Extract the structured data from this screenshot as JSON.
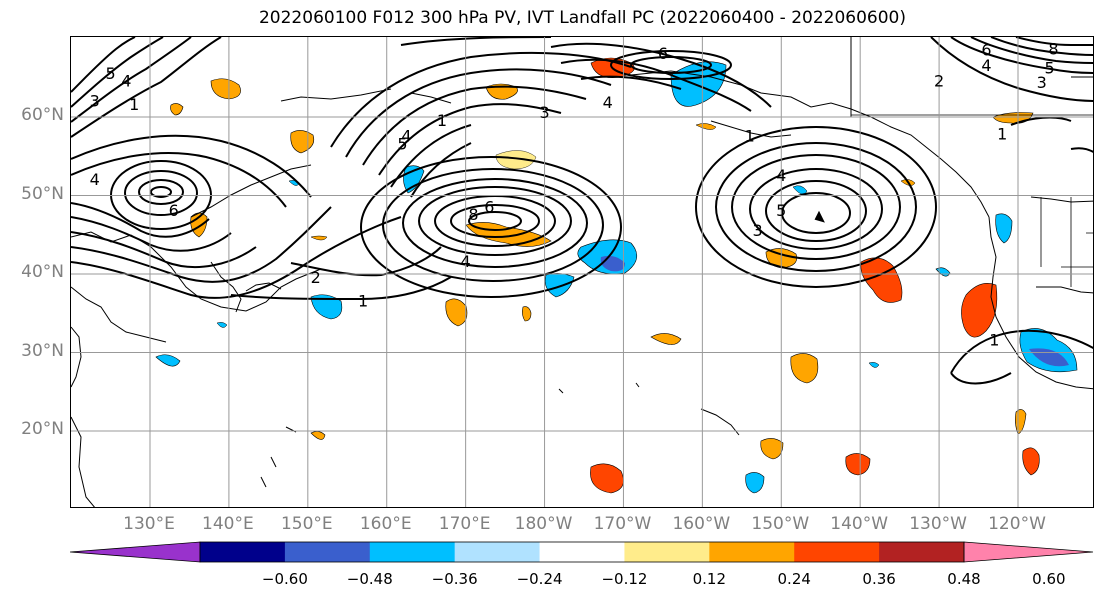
{
  "title": "2022060100 F012 300 hPa PV, IVT Landfall PC (2022060400 - 2022060600)",
  "lat_labels": [
    {
      "text": "60°N",
      "lat": 60
    },
    {
      "text": "50°N",
      "lat": 50
    },
    {
      "text": "40°N",
      "lat": 40
    },
    {
      "text": "30°N",
      "lat": 30
    },
    {
      "text": "20°N",
      "lat": 20
    }
  ],
  "lon_labels": [
    {
      "text": "130°E",
      "lon": 130
    },
    {
      "text": "140°E",
      "lon": 140
    },
    {
      "text": "150°E",
      "lon": 150
    },
    {
      "text": "160°E",
      "lon": 160
    },
    {
      "text": "170°E",
      "lon": 170
    },
    {
      "text": "180°W",
      "lon": 180
    },
    {
      "text": "170°W",
      "lon": 190
    },
    {
      "text": "160°W",
      "lon": 200
    },
    {
      "text": "150°W",
      "lon": 210
    },
    {
      "text": "140°W",
      "lon": 220
    },
    {
      "text": "130°W",
      "lon": 230
    },
    {
      "text": "120°W",
      "lon": 240
    }
  ],
  "map_extent": {
    "lon_min": 120,
    "lon_max": 250,
    "lat_min": 10,
    "lat_max": 70
  },
  "colorbar": {
    "colors": [
      "#9932cc",
      "#00008b",
      "#3a5fcd",
      "#00bfff",
      "#b0e2ff",
      "#ffffff",
      "#ffec8b",
      "#ffa500",
      "#ff4500",
      "#b22222",
      "#ff82ab"
    ],
    "ticks": [
      "−0.60",
      "−0.48",
      "−0.36",
      "−0.24",
      "−0.12",
      "0.12",
      "0.24",
      "0.36",
      "0.48",
      "0.60"
    ]
  },
  "contour_labels": [
    {
      "text": "6",
      "lon": 133,
      "lat": 48
    },
    {
      "text": "4",
      "lon": 123,
      "lat": 52
    },
    {
      "text": "5",
      "lon": 125,
      "lat": 65.5
    },
    {
      "text": "4",
      "lon": 127,
      "lat": 64.5
    },
    {
      "text": "3",
      "lon": 123,
      "lat": 62
    },
    {
      "text": "1",
      "lon": 128,
      "lat": 61.5
    },
    {
      "text": "8",
      "lon": 171,
      "lat": 47.5
    },
    {
      "text": "6",
      "lon": 173,
      "lat": 48.5
    },
    {
      "text": "4",
      "lon": 170,
      "lat": 41.5
    },
    {
      "text": "1",
      "lon": 167,
      "lat": 59.5
    },
    {
      "text": "5",
      "lon": 162,
      "lat": 56.5
    },
    {
      "text": "4",
      "lon": 162.5,
      "lat": 57.5
    },
    {
      "text": "2",
      "lon": 151,
      "lat": 39.5
    },
    {
      "text": "1",
      "lon": 157,
      "lat": 36.5
    },
    {
      "text": "3",
      "lon": 180,
      "lat": 60.5
    },
    {
      "text": "4",
      "lon": 188,
      "lat": 61.8
    },
    {
      "text": "6",
      "lon": 195,
      "lat": 68
    },
    {
      "text": "1",
      "lon": 206,
      "lat": 57.5
    },
    {
      "text": "4",
      "lon": 210,
      "lat": 52.5
    },
    {
      "text": "5",
      "lon": 210,
      "lat": 48
    },
    {
      "text": "3",
      "lon": 207,
      "lat": 45.5
    },
    {
      "text": "6",
      "lon": 236,
      "lat": 68.5
    },
    {
      "text": "4",
      "lon": 236,
      "lat": 66.5
    },
    {
      "text": "3",
      "lon": 243,
      "lat": 64.3
    },
    {
      "text": "2",
      "lon": 230,
      "lat": 64.5
    },
    {
      "text": "5",
      "lon": 244,
      "lat": 66.2
    },
    {
      "text": "8",
      "lon": 244.5,
      "lat": 68.6
    },
    {
      "text": "1",
      "lon": 238,
      "lat": 57.8
    },
    {
      "text": "1",
      "lon": 237,
      "lat": 31.5
    }
  ]
}
